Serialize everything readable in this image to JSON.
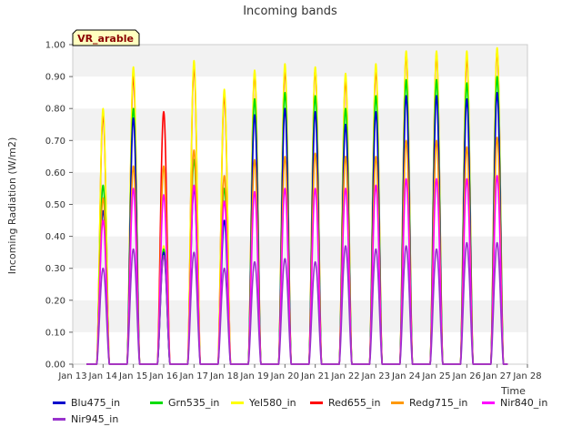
{
  "chart_data": {
    "type": "line",
    "title": "Incoming bands",
    "ylabel": "Incoming Radiation (W/m2)",
    "xlabel": "Time",
    "annotation": "VR_arable",
    "xlim": [
      "Jan 13",
      "Jan 28"
    ],
    "ylim": [
      0,
      1.0
    ],
    "yticks": [
      0.0,
      0.1,
      0.2,
      0.3,
      0.4,
      0.5,
      0.6,
      0.7,
      0.8,
      0.9,
      1.0
    ],
    "ytick_labels": [
      "0.00",
      "0.10",
      "0.20",
      "0.30",
      "0.40",
      "0.50",
      "0.60",
      "0.70",
      "0.80",
      "0.90",
      "1.00"
    ],
    "xtick_labels": [
      "Jan 13",
      "Jan 14",
      "Jan 15",
      "Jan 16",
      "Jan 17",
      "Jan 18",
      "Jan 19",
      "Jan 20",
      "Jan 21",
      "Jan 22",
      "Jan 23",
      "Jan 24",
      "Jan 25",
      "Jan 26",
      "Jan 27",
      "Jan 28"
    ],
    "grid": "horizontal bands",
    "legend_position": "bottom",
    "day_noon_x": [
      "Jan 14",
      "Jan 15",
      "Jan 16",
      "Jan 17",
      "Jan 18",
      "Jan 19",
      "Jan 20",
      "Jan 21",
      "Jan 22",
      "Jan 23",
      "Jan 24",
      "Jan 25",
      "Jan 26",
      "Jan 27"
    ],
    "series": [
      {
        "name": "Blu475_in",
        "color": "#0000cc",
        "daily_peaks": [
          0.48,
          0.77,
          0.35,
          0.55,
          0.45,
          0.78,
          0.8,
          0.79,
          0.75,
          0.79,
          0.84,
          0.84,
          0.83,
          0.85
        ]
      },
      {
        "name": "Grn535_in",
        "color": "#00dd00",
        "daily_peaks": [
          0.56,
          0.8,
          0.36,
          0.64,
          0.55,
          0.83,
          0.85,
          0.84,
          0.8,
          0.84,
          0.89,
          0.89,
          0.88,
          0.9
        ]
      },
      {
        "name": "Yel580_in",
        "color": "#ffff00",
        "daily_peaks": [
          0.8,
          0.93,
          0.37,
          0.95,
          0.86,
          0.92,
          0.94,
          0.93,
          0.91,
          0.94,
          0.98,
          0.98,
          0.98,
          0.99
        ]
      },
      {
        "name": "Red655_in",
        "color": "#ff0000",
        "daily_peaks": [
          0.78,
          0.9,
          0.79,
          0.93,
          0.84,
          0.91,
          0.92,
          0.92,
          0.89,
          0.92,
          0.97,
          0.97,
          0.96,
          0.98
        ]
      },
      {
        "name": "Redg715_in",
        "color": "#ff9900",
        "daily_peaks": [
          0.52,
          0.62,
          0.62,
          0.67,
          0.59,
          0.64,
          0.65,
          0.66,
          0.65,
          0.65,
          0.7,
          0.7,
          0.68,
          0.71
        ]
      },
      {
        "name": "Nir840_in",
        "color": "#ff00ff",
        "daily_peaks": [
          0.45,
          0.55,
          0.53,
          0.56,
          0.51,
          0.54,
          0.55,
          0.55,
          0.55,
          0.56,
          0.58,
          0.58,
          0.58,
          0.59
        ]
      },
      {
        "name": "Nir945_in",
        "color": "#9933cc",
        "daily_peaks": [
          0.3,
          0.36,
          0.34,
          0.35,
          0.3,
          0.32,
          0.33,
          0.32,
          0.37,
          0.36,
          0.37,
          0.36,
          0.38,
          0.38
        ]
      }
    ]
  }
}
